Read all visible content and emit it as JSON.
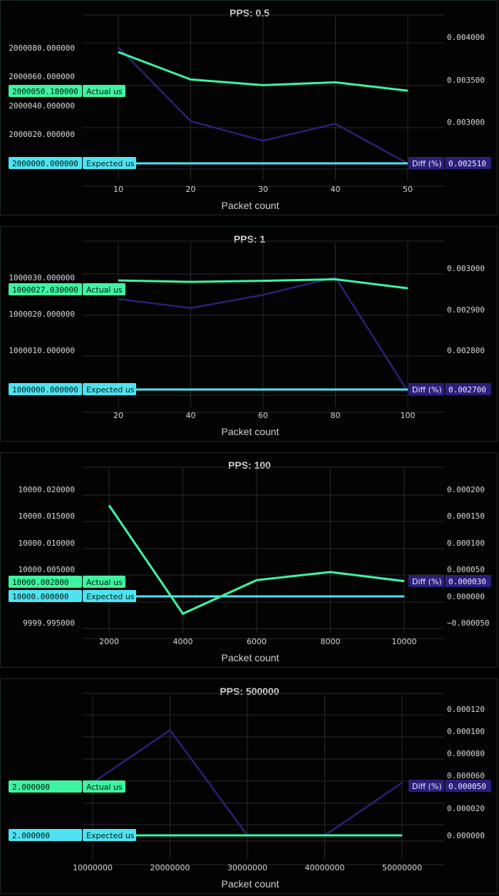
{
  "theme": {
    "actual_color": "#3ff3a0",
    "expected_color": "#4fe3f2",
    "diff_color": "#2a2074",
    "diff_tag_color": "#2b1f7a",
    "grid_color": "#2a2a2a"
  },
  "chart_data": [
    {
      "type": "line",
      "title": "PPS: 0.5",
      "xlabel": "Packet count",
      "x": [
        10,
        20,
        30,
        40,
        50
      ],
      "series": [
        {
          "name": "Actual us",
          "axis": "left",
          "values": [
            2000077.0,
            2000058.0,
            2000054.0,
            2000056.0,
            2000050.18
          ]
        },
        {
          "name": "Expected us",
          "axis": "left",
          "values": [
            2000000.0,
            2000000.0,
            2000000.0,
            2000000.0,
            2000000.0
          ]
        },
        {
          "name": "Diff (%)",
          "axis": "right",
          "values": [
            0.00388,
            0.00301,
            0.00278,
            0.00298,
            0.00251
          ]
        }
      ],
      "left_ticks": [
        "2000080.000000",
        "2000060.000000",
        "2000040.000000",
        "2000020.000000"
      ],
      "left_tick_values": [
        2000080,
        2000060,
        2000040,
        2000020
      ],
      "right_ticks": [
        "0.004000",
        "0.003500",
        "0.003000"
      ],
      "right_tick_values": [
        0.004,
        0.0035,
        0.003
      ],
      "x_ticks": [
        "10",
        "20",
        "30",
        "40",
        "50"
      ],
      "tags": {
        "actual": "2000050.180000",
        "expected": "2000000.000000",
        "diff": "0.002510"
      }
    },
    {
      "type": "line",
      "title": "PPS: 1",
      "xlabel": "Packet count",
      "x": [
        20,
        40,
        60,
        80,
        100
      ],
      "series": [
        {
          "name": "Actual us",
          "axis": "left",
          "values": [
            1000029.2,
            1000028.8,
            1000029.1,
            1000029.5,
            1000027.03
          ]
        },
        {
          "name": "Expected us",
          "axis": "left",
          "values": [
            1000000.0,
            1000000.0,
            1000000.0,
            1000000.0,
            1000000.0
          ]
        },
        {
          "name": "Diff (%)",
          "axis": "right",
          "values": [
            0.002925,
            0.002903,
            0.002935,
            0.002978,
            0.0027
          ]
        }
      ],
      "left_ticks": [
        "1000030.000000",
        "1000020.000000",
        "1000010.000000"
      ],
      "left_tick_values": [
        1000030,
        1000020,
        1000010
      ],
      "right_ticks": [
        "0.003000",
        "0.002900",
        "0.002800"
      ],
      "right_tick_values": [
        0.003,
        0.0029,
        0.0028
      ],
      "x_ticks": [
        "20",
        "40",
        "60",
        "80",
        "100"
      ],
      "tags": {
        "actual": "1000027.030000",
        "expected": "1000000.000000",
        "diff": "0.002700"
      }
    },
    {
      "type": "line",
      "title": "PPS: 100",
      "xlabel": "Packet count",
      "x": [
        2000,
        4000,
        6000,
        8000,
        10000
      ],
      "series": [
        {
          "name": "Actual us",
          "axis": "left",
          "values": [
            10000.017,
            9999.9967,
            10000.003,
            10000.0045,
            10000.0028
          ]
        },
        {
          "name": "Expected us",
          "axis": "left",
          "values": [
            10000.0,
            10000.0,
            10000.0,
            10000.0,
            10000.0
          ]
        },
        {
          "name": "Diff (%)",
          "axis": "right",
          "values": [
            0.00017,
            -3.3e-05,
            3e-05,
            4.5e-05,
            3e-05
          ]
        }
      ],
      "left_ticks": [
        "10000.020000",
        "10000.015000",
        "10000.010000",
        "10000.005000",
        "10000.000000",
        "9999.995000"
      ],
      "left_tick_values": [
        10000.02,
        10000.015,
        10000.01,
        10000.005,
        10000.0,
        9999.995
      ],
      "right_ticks": [
        "0.000200",
        "0.000150",
        "0.000100",
        "0.000050",
        "0.000000",
        "−0.000050"
      ],
      "right_tick_values": [
        0.0002,
        0.00015,
        0.0001,
        5e-05,
        0.0,
        -5e-05
      ],
      "x_ticks": [
        "2000",
        "4000",
        "6000",
        "8000",
        "10000"
      ],
      "tags": {
        "actual": "10000.002800",
        "expected": "10000.000000",
        "diff": "0.000030"
      }
    },
    {
      "type": "line",
      "title": "PPS: 500000",
      "xlabel": "Packet count",
      "x": [
        10000000,
        20000000,
        30000000,
        40000000,
        50000000
      ],
      "series": [
        {
          "name": "Actual us",
          "axis": "left",
          "values": [
            2.0,
            2.0,
            2.0,
            2.0,
            2.0
          ]
        },
        {
          "name": "Expected us",
          "axis": "left",
          "values": [
            2.0,
            2.0,
            2.0,
            2.0,
            2.0
          ]
        },
        {
          "name": "Diff (%)",
          "axis": "right",
          "values": [
            5e-05,
            0.0001,
            0.0,
            0.0,
            5e-05
          ]
        }
      ],
      "left_ticks": [],
      "left_tick_values": [],
      "right_ticks": [
        "0.000120",
        "0.000100",
        "0.000080",
        "0.000060",
        "0.000040",
        "0.000020",
        "0.000000"
      ],
      "right_tick_values": [
        0.00012,
        0.0001,
        8e-05,
        6e-05,
        4e-05,
        2e-05,
        0.0
      ],
      "x_ticks": [
        "10000000",
        "20000000",
        "30000000",
        "40000000",
        "50000000"
      ],
      "tags": {
        "actual": "2.000000",
        "expected": "2.000000",
        "diff": "0.000050"
      }
    }
  ]
}
